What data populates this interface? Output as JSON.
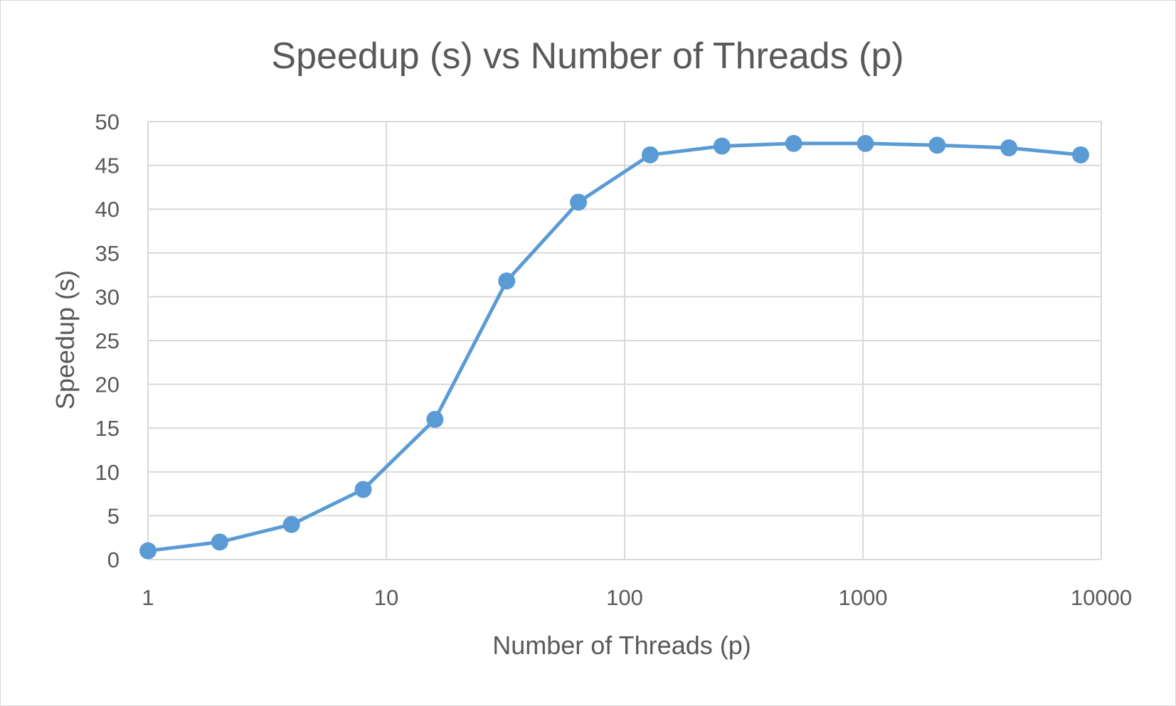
{
  "chart_data": {
    "type": "line",
    "title": "Speedup (s) vs Number of Threads (p)",
    "xlabel": "Number of Threads (p)",
    "ylabel": "Speedup (s)",
    "x_scale": "log",
    "xlim": [
      1,
      10000
    ],
    "ylim": [
      0,
      50
    ],
    "x_ticks": [
      1,
      10,
      100,
      1000,
      10000
    ],
    "x_tick_labels": [
      "1",
      "10",
      "100",
      "1000",
      "10000"
    ],
    "y_ticks": [
      0,
      5,
      10,
      15,
      20,
      25,
      30,
      35,
      40,
      45,
      50
    ],
    "y_tick_labels": [
      "0",
      "5",
      "10",
      "15",
      "20",
      "25",
      "30",
      "35",
      "40",
      "45",
      "50"
    ],
    "grid": true,
    "legend": "none",
    "series": [
      {
        "color": "#5b9bd5",
        "x": [
          1,
          2,
          4,
          8,
          16,
          32,
          64,
          128,
          256,
          512,
          1024,
          2048,
          4096,
          8192
        ],
        "y": [
          1,
          2,
          4,
          8,
          16,
          31.8,
          40.8,
          46.2,
          47.2,
          47.5,
          47.5,
          47.3,
          47,
          46.2
        ]
      }
    ]
  }
}
